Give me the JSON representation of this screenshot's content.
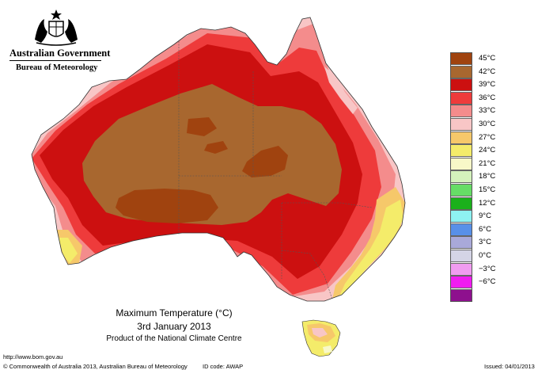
{
  "header": {
    "government": "Australian Government",
    "bureau": "Bureau of Meteorology"
  },
  "legend": {
    "title": "",
    "entries": [
      {
        "label": "45°C",
        "color": "#a0430f"
      },
      {
        "label": "42°C",
        "color": "#a8672f"
      },
      {
        "label": "39°C",
        "color": "#cc1010"
      },
      {
        "label": "36°C",
        "color": "#ee3b3b"
      },
      {
        "label": "33°C",
        "color": "#f48c8c"
      },
      {
        "label": "30°C",
        "color": "#f8c6c6"
      },
      {
        "label": "27°C",
        "color": "#f6c86a"
      },
      {
        "label": "24°C",
        "color": "#f4ec6a"
      },
      {
        "label": "21°C",
        "color": "#f8f8c8"
      },
      {
        "label": "18°C",
        "color": "#d4f2bc"
      },
      {
        "label": "15°C",
        "color": "#66dd66"
      },
      {
        "label": "12°C",
        "color": "#1bb01b"
      },
      {
        "label": "9°C",
        "color": "#8ef2f2"
      },
      {
        "label": "6°C",
        "color": "#5890e8"
      },
      {
        "label": "3°C",
        "color": "#a9a9d9"
      },
      {
        "label": "0°C",
        "color": "#d4d4e6"
      },
      {
        "label": "−3°C",
        "color": "#f09cf0"
      },
      {
        "label": "−6°C",
        "color": "#f01cf0"
      },
      {
        "label": "",
        "color": "#8e108e"
      }
    ]
  },
  "map": {
    "region": "Australia",
    "variable": "Maximum Temperature"
  },
  "caption": {
    "title": "Maximum Temperature (°C)",
    "date": "3rd January 2013",
    "product": "Product of the National Climate Centre"
  },
  "footer": {
    "url": "http://www.bom.gov.au",
    "copyright": "© Commonwealth of Australia 2013, Australian Bureau of Meteorology",
    "id_code": "ID code: AWAP",
    "issued": "Issued: 04/01/2013"
  }
}
